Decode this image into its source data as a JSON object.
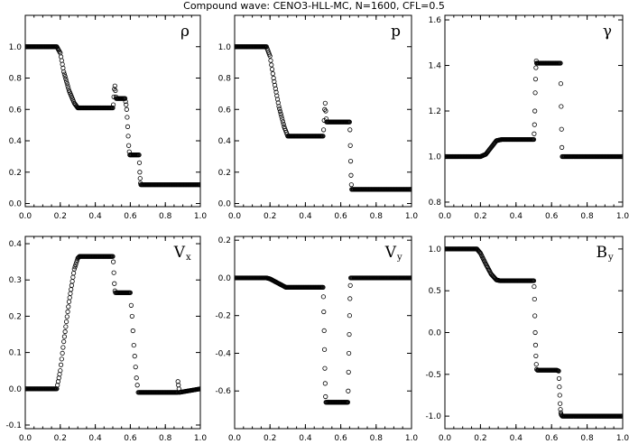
{
  "title": "Compound wave: CENO3-HLL-MC, N=1600, CFL=0.5",
  "chart_data": [
    {
      "type": "scatter",
      "label": "ρ",
      "xlim": [
        0.0,
        1.0
      ],
      "ylim": [
        -0.02,
        1.2
      ],
      "xticks": [
        "0.0",
        "0.2",
        "0.4",
        "0.6",
        "0.8",
        "1.0"
      ],
      "yticks": [
        0.0,
        0.2,
        0.4,
        0.6,
        0.8,
        1.0
      ],
      "ytick_labels": [
        "0.0",
        "0.2",
        "0.4",
        "0.6",
        "0.8",
        "1.0"
      ],
      "x": [
        0.0,
        0.18,
        0.2,
        0.22,
        0.25,
        0.28,
        0.3,
        0.5,
        0.503,
        0.506,
        0.509,
        0.512,
        0.515,
        0.518,
        0.52,
        0.57,
        0.573,
        0.576,
        0.579,
        0.582,
        0.585,
        0.588,
        0.591,
        0.594,
        0.597,
        0.6,
        0.65,
        0.652,
        0.654,
        0.656,
        0.658,
        0.66,
        1.0
      ],
      "y": [
        1.0,
        1.0,
        0.96,
        0.84,
        0.72,
        0.64,
        0.61,
        0.61,
        0.63,
        0.68,
        0.73,
        0.75,
        0.72,
        0.68,
        0.67,
        0.67,
        0.65,
        0.63,
        0.6,
        0.55,
        0.49,
        0.43,
        0.37,
        0.33,
        0.31,
        0.31,
        0.31,
        0.26,
        0.2,
        0.16,
        0.13,
        0.12,
        0.12
      ]
    },
    {
      "type": "scatter",
      "label": "p",
      "xlim": [
        0.0,
        1.0
      ],
      "ylim": [
        -0.02,
        1.2
      ],
      "xticks": [
        "0.0",
        "0.2",
        "0.4",
        "0.6",
        "0.8",
        "1.0"
      ],
      "yticks": [
        0.0,
        0.2,
        0.4,
        0.6,
        0.8,
        1.0
      ],
      "ytick_labels": [
        "0.0",
        "0.2",
        "0.4",
        "0.6",
        "0.8",
        "1.0"
      ],
      "x": [
        0.0,
        0.18,
        0.2,
        0.22,
        0.25,
        0.28,
        0.3,
        0.5,
        0.503,
        0.506,
        0.509,
        0.512,
        0.515,
        0.518,
        0.52,
        0.65,
        0.652,
        0.654,
        0.656,
        0.658,
        0.66,
        0.662,
        1.0
      ],
      "y": [
        1.0,
        1.0,
        0.94,
        0.8,
        0.62,
        0.49,
        0.43,
        0.43,
        0.47,
        0.53,
        0.6,
        0.64,
        0.59,
        0.54,
        0.52,
        0.52,
        0.47,
        0.37,
        0.27,
        0.18,
        0.12,
        0.09,
        0.09
      ]
    },
    {
      "type": "scatter",
      "label": "γ",
      "xlim": [
        0.0,
        1.0
      ],
      "ylim": [
        0.78,
        1.62
      ],
      "xticks": [
        "0.0",
        "0.2",
        "0.4",
        "0.6",
        "0.8",
        "1.0"
      ],
      "yticks": [
        0.8,
        1.0,
        1.2,
        1.4,
        1.6
      ],
      "ytick_labels": [
        "0.8",
        "1.0",
        "1.2",
        "1.4",
        "1.6"
      ],
      "x": [
        0.0,
        0.2,
        0.23,
        0.26,
        0.29,
        0.32,
        0.5,
        0.502,
        0.504,
        0.506,
        0.508,
        0.51,
        0.512,
        0.514,
        0.516,
        0.518,
        0.52,
        0.65,
        0.652,
        0.654,
        0.656,
        0.658,
        0.66,
        1.0
      ],
      "y": [
        1.0,
        1.0,
        1.01,
        1.04,
        1.07,
        1.075,
        1.075,
        1.1,
        1.14,
        1.2,
        1.28,
        1.34,
        1.39,
        1.42,
        1.41,
        1.41,
        1.41,
        1.41,
        1.32,
        1.22,
        1.12,
        1.04,
        1.0,
        1.0
      ]
    },
    {
      "type": "scatter",
      "label": "Vx",
      "xlim": [
        0.0,
        1.0
      ],
      "ylim": [
        -0.11,
        0.42
      ],
      "xticks": [
        "0.0",
        "0.2",
        "0.4",
        "0.6",
        "0.8",
        "1.0"
      ],
      "yticks": [
        -0.1,
        0.0,
        0.1,
        0.2,
        0.3,
        0.4
      ],
      "ytick_labels": [
        "-0.1",
        "0.0",
        "0.1",
        "0.2",
        "0.3",
        "0.4"
      ],
      "x": [
        0.0,
        0.18,
        0.2,
        0.22,
        0.25,
        0.28,
        0.3,
        0.31,
        0.5,
        0.503,
        0.506,
        0.509,
        0.512,
        0.515,
        0.52,
        0.6,
        0.605,
        0.61,
        0.615,
        0.62,
        0.625,
        0.63,
        0.635,
        0.64,
        0.645,
        0.65,
        0.87,
        0.872,
        0.875,
        0.878,
        0.88,
        1.0
      ],
      "y": [
        0.0,
        0.0,
        0.05,
        0.13,
        0.24,
        0.33,
        0.36,
        0.365,
        0.365,
        0.35,
        0.32,
        0.29,
        0.27,
        0.265,
        0.265,
        0.265,
        0.23,
        0.2,
        0.16,
        0.12,
        0.09,
        0.06,
        0.03,
        0.01,
        -0.01,
        -0.01,
        -0.01,
        0.02,
        0.01,
        0.0,
        -0.01,
        0.0
      ]
    },
    {
      "type": "scatter",
      "label": "Vy",
      "xlim": [
        0.0,
        1.0
      ],
      "ylim": [
        -0.8,
        0.22
      ],
      "xticks": [
        "0.0",
        "0.2",
        "0.4",
        "0.6",
        "0.8",
        "1.0"
      ],
      "yticks": [
        -0.6,
        -0.4,
        -0.2,
        0.0,
        0.2
      ],
      "ytick_labels": [
        "-0.6",
        "-0.4",
        "-0.2",
        "0.0",
        "0.2"
      ],
      "x": [
        0.0,
        0.18,
        0.2,
        0.23,
        0.26,
        0.29,
        0.31,
        0.5,
        0.502,
        0.504,
        0.506,
        0.508,
        0.51,
        0.512,
        0.514,
        0.516,
        0.52,
        0.64,
        0.642,
        0.644,
        0.646,
        0.648,
        0.65,
        0.652,
        0.654,
        0.656,
        0.66,
        1.0
      ],
      "y": [
        0.0,
        0.0,
        -0.005,
        -0.02,
        -0.035,
        -0.05,
        -0.05,
        -0.05,
        -0.1,
        -0.18,
        -0.28,
        -0.38,
        -0.48,
        -0.56,
        -0.63,
        -0.66,
        -0.66,
        -0.66,
        -0.6,
        -0.5,
        -0.4,
        -0.3,
        -0.2,
        -0.11,
        -0.04,
        0.0,
        0.0,
        0.0
      ]
    },
    {
      "type": "scatter",
      "label": "By",
      "xlim": [
        0.0,
        1.0
      ],
      "ylim": [
        -1.15,
        1.15
      ],
      "xticks": [
        "0.0",
        "0.2",
        "0.4",
        "0.6",
        "0.8",
        "1.0"
      ],
      "yticks": [
        -1.0,
        -0.5,
        0.0,
        0.5,
        1.0
      ],
      "ytick_labels": [
        "-1.0",
        "-0.5",
        "0.0",
        "0.5",
        "1.0"
      ],
      "x": [
        0.0,
        0.18,
        0.2,
        0.23,
        0.26,
        0.29,
        0.31,
        0.5,
        0.502,
        0.504,
        0.506,
        0.508,
        0.51,
        0.512,
        0.514,
        0.516,
        0.52,
        0.57,
        0.6,
        0.63,
        0.64,
        0.642,
        0.644,
        0.646,
        0.648,
        0.65,
        0.652,
        0.654,
        0.656,
        0.66,
        1.0
      ],
      "y": [
        1.0,
        1.0,
        0.95,
        0.82,
        0.7,
        0.63,
        0.62,
        0.62,
        0.55,
        0.4,
        0.2,
        0.0,
        -0.15,
        -0.28,
        -0.38,
        -0.44,
        -0.45,
        -0.45,
        -0.45,
        -0.45,
        -0.46,
        -0.55,
        -0.65,
        -0.75,
        -0.85,
        -0.92,
        -0.96,
        -0.98,
        -0.99,
        -1.0,
        -1.0
      ]
    }
  ]
}
